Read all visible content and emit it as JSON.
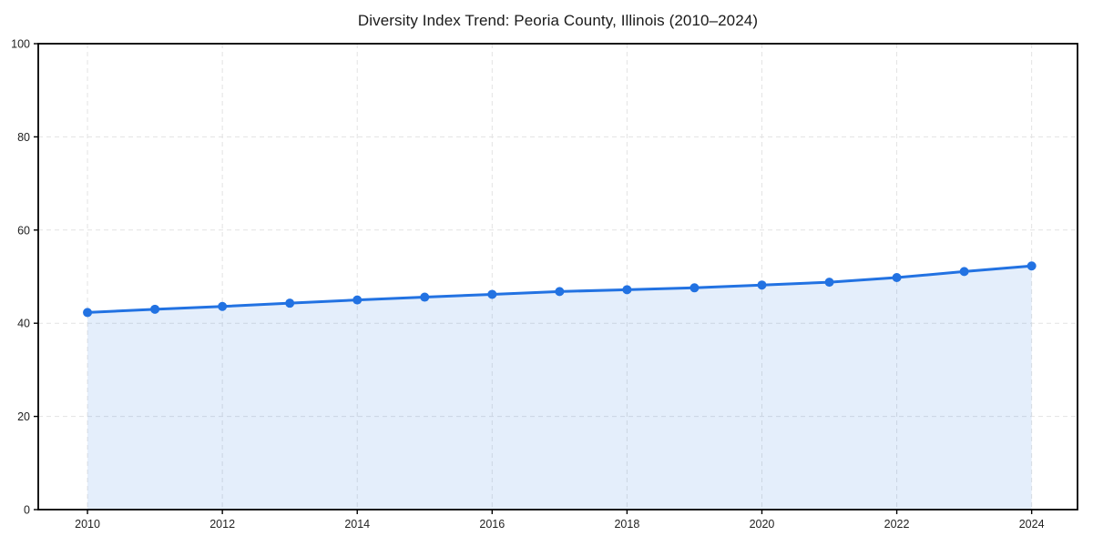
{
  "page": {
    "background_color": "#ffffff"
  },
  "chart": {
    "title": "Diversity Index Trend: Peoria County, Illinois (2010–2024)"
  },
  "chart_data": {
    "type": "area",
    "title": "Diversity Index Trend: Peoria County, Illinois (2010–2024)",
    "series_name": "Diversity Index",
    "x": [
      2010,
      2011,
      2012,
      2013,
      2014,
      2015,
      2016,
      2017,
      2018,
      2019,
      2020,
      2021,
      2022,
      2023,
      2024
    ],
    "values": [
      42.3,
      43.0,
      43.6,
      44.3,
      45.0,
      45.6,
      46.2,
      46.8,
      47.2,
      47.6,
      48.2,
      48.8,
      49.8,
      51.1,
      52.3
    ],
    "xlabel": "",
    "ylabel": "",
    "xlim": [
      2009.27,
      2024.68
    ],
    "ylim": [
      0,
      100
    ],
    "x_ticks": [
      2010,
      2012,
      2014,
      2016,
      2018,
      2020,
      2022,
      2024
    ],
    "x_tick_labels": [
      "2010",
      "2012",
      "2014",
      "2016",
      "2018",
      "2020",
      "2022",
      "2024"
    ],
    "y_ticks": [
      0,
      20,
      40,
      60,
      80,
      100
    ],
    "y_tick_labels": [
      "0",
      "20",
      "40",
      "60",
      "80",
      "100"
    ],
    "grid": true,
    "grid_line_style": "dashed",
    "grid_color": "#e3e3e3",
    "legend": "none",
    "line_color": "#2272e2",
    "marker": "circle",
    "marker_color": "#2272e2",
    "fill_color": "rgba(34,114,226,0.12)",
    "axis_color": "#000000"
  }
}
